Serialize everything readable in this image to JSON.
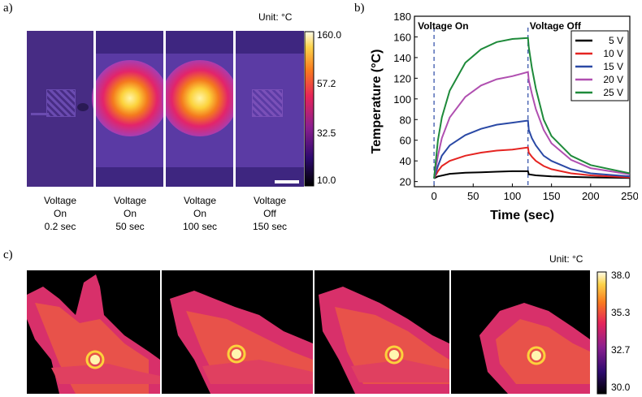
{
  "panel_a": {
    "label": "a)",
    "unit": "Unit: °C",
    "colorbar_ticks": [
      "160.0",
      "57.2",
      "32.5",
      "10.0"
    ],
    "captions": [
      {
        "l1": "Voltage",
        "l2": "On",
        "l3": "0.2 sec"
      },
      {
        "l1": "Voltage",
        "l2": "On",
        "l3": "50 sec"
      },
      {
        "l1": "Voltage",
        "l2": "On",
        "l3": "100 sec"
      },
      {
        "l1": "Voltage",
        "l2": "Off",
        "l3": "150 sec"
      }
    ]
  },
  "panel_b": {
    "label": "b)"
  },
  "panel_c": {
    "label": "c)",
    "unit": "Unit: °C",
    "colorbar_ticks": [
      "38.0",
      "35.3",
      "32.7",
      "30.0"
    ]
  },
  "chart_data": {
    "type": "line",
    "xlabel": "Time (sec)",
    "ylabel": "Temperature (°C)",
    "xlim": [
      -25,
      250
    ],
    "ylim": [
      15,
      180
    ],
    "xticks": [
      0,
      50,
      100,
      150,
      200,
      250
    ],
    "yticks": [
      20,
      40,
      60,
      80,
      100,
      120,
      140,
      160,
      180
    ],
    "annotations": [
      {
        "text": "Voltage On",
        "x": 0
      },
      {
        "text": "Voltage Off",
        "x": 120
      }
    ],
    "series": [
      {
        "name": "5 V",
        "color": "#000000",
        "x": [
          0,
          5,
          20,
          40,
          60,
          80,
          100,
          120,
          121,
          130,
          150,
          175,
          200,
          250
        ],
        "y": [
          23,
          25,
          27.5,
          28.5,
          29,
          29.5,
          30,
          30,
          27,
          26,
          25,
          24.5,
          24,
          23.5
        ]
      },
      {
        "name": "10 V",
        "color": "#e52421",
        "x": [
          0,
          5,
          10,
          20,
          40,
          60,
          80,
          100,
          120,
          121,
          125,
          130,
          140,
          150,
          175,
          200,
          250
        ],
        "y": [
          23,
          30,
          35,
          40,
          45,
          48,
          50,
          51,
          53,
          48,
          44,
          40,
          35,
          32,
          28,
          26,
          24
        ]
      },
      {
        "name": "15 V",
        "color": "#2a49a5",
        "x": [
          0,
          5,
          10,
          20,
          40,
          60,
          80,
          100,
          120,
          121,
          125,
          130,
          140,
          150,
          175,
          200,
          250
        ],
        "y": [
          23,
          35,
          45,
          55,
          65,
          71,
          75,
          77,
          79,
          70,
          62,
          55,
          45,
          40,
          32,
          28,
          25
        ]
      },
      {
        "name": "20 V",
        "color": "#b04fb0",
        "x": [
          0,
          5,
          10,
          20,
          40,
          60,
          80,
          100,
          120,
          121,
          125,
          130,
          140,
          150,
          175,
          200,
          250
        ],
        "y": [
          23,
          45,
          62,
          82,
          102,
          113,
          119,
          122,
          126,
          118,
          105,
          90,
          70,
          57,
          41,
          33,
          27
        ]
      },
      {
        "name": "25 V",
        "color": "#1e8a3a",
        "x": [
          0,
          5,
          10,
          20,
          40,
          60,
          80,
          100,
          120,
          121,
          125,
          130,
          140,
          150,
          175,
          200,
          250
        ],
        "y": [
          23,
          60,
          82,
          108,
          135,
          148,
          155,
          158,
          159,
          150,
          130,
          110,
          80,
          64,
          45,
          36,
          28
        ]
      }
    ]
  }
}
